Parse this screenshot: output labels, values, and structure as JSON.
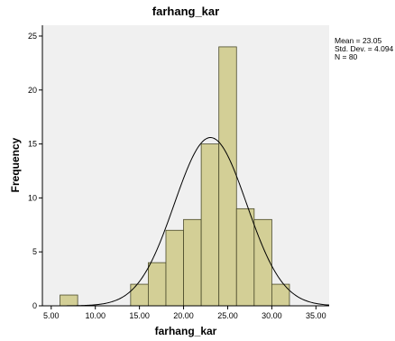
{
  "chart_data": {
    "type": "bar",
    "title": "farhang_kar",
    "xlabel": "farhang_kar",
    "ylabel": "Frequency",
    "xlim": [
      4.0,
      36.5
    ],
    "ylim": [
      0,
      26
    ],
    "xticks": [
      5.0,
      10.0,
      15.0,
      20.0,
      25.0,
      30.0,
      35.0
    ],
    "xtick_labels": [
      "5.00",
      "10.00",
      "15.00",
      "20.00",
      "25.00",
      "30.00",
      "35.00"
    ],
    "yticks": [
      0,
      5,
      10,
      15,
      20,
      25
    ],
    "ytick_labels": [
      "0",
      "5",
      "10",
      "15",
      "20",
      "25"
    ],
    "bin_width": 2.0,
    "bins": [
      {
        "start": 6.0,
        "end": 8.0,
        "count": 1
      },
      {
        "start": 14.0,
        "end": 16.0,
        "count": 2
      },
      {
        "start": 16.0,
        "end": 18.0,
        "count": 4
      },
      {
        "start": 18.0,
        "end": 20.0,
        "count": 7
      },
      {
        "start": 20.0,
        "end": 22.0,
        "count": 8
      },
      {
        "start": 22.0,
        "end": 24.0,
        "count": 15
      },
      {
        "start": 24.0,
        "end": 26.0,
        "count": 24
      },
      {
        "start": 26.0,
        "end": 28.0,
        "count": 9
      },
      {
        "start": 28.0,
        "end": 30.0,
        "count": 8
      },
      {
        "start": 30.0,
        "end": 32.0,
        "count": 2
      }
    ],
    "normal_curve": {
      "mean": 23.05,
      "sd": 4.094,
      "n": 80
    },
    "stats_text": [
      "Mean = 23.05",
      "Std. Dev. = 4.094",
      "N = 80"
    ],
    "colors": {
      "plot_background": "#f0f0f0",
      "bar_fill": "#d3cf96",
      "bar_stroke": "#4a4a2a",
      "curve": "#000000",
      "frame": "#000000"
    }
  }
}
